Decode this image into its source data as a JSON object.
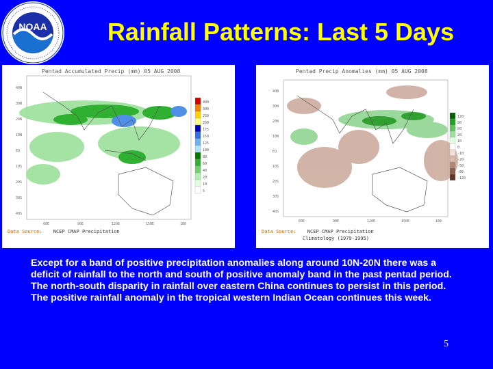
{
  "slide": {
    "title": "Rainfall Patterns: Last 5 Days",
    "body": "Except for a band of positive precipitation anomalies along around 10N-20N there was a deficit of rainfall to the north and south of positive anomaly band in the past pentad period. The north-south disparity in rainfall over eastern China continues to persist in this period.  The positive rainfall anomaly in the tropical western Indian Ocean continues this week.",
    "page_number": "5"
  },
  "logo": {
    "name": "noaa-logo",
    "text": "NOAA",
    "ring_text": "NATIONAL OCEANIC AND ATMOSPHERIC ADMINISTRATION · U.S. DEPARTMENT OF COMMERCE"
  },
  "maps": {
    "left": {
      "title": "Pentad Accumulated Precip (mm) 05 AUG 2008",
      "source_label": "Data Source:",
      "source_text": "NCEP CMAP Precipitation",
      "lat_labels": [
        "40N",
        "30N",
        "20N",
        "10N",
        "EQ",
        "10S",
        "20S",
        "30S",
        "40S"
      ],
      "lon_labels": [
        "60E",
        "90E",
        "120E",
        "150E",
        "180"
      ],
      "legend": [
        "400",
        "300",
        "250",
        "200",
        "175",
        "150",
        "125",
        "100",
        "80",
        "60",
        "40",
        "20",
        "10",
        "5"
      ],
      "legend_colors": [
        "#d40000",
        "#f08000",
        "#ffd000",
        "#ffff80",
        "#0000c8",
        "#3070e0",
        "#70b0f0",
        "#b0e0ff",
        "#007800",
        "#30b030",
        "#70d070",
        "#b0f0b0",
        "#e0ffe0",
        "#ffffff"
      ]
    },
    "right": {
      "title": "Pentad Precip Anomalies (mm) 05 AUG 2008",
      "source_label": "Data Source:",
      "source_text": "NCEP CMAP Precipitation",
      "source_text2": "Climatology (1979-1995)",
      "lat_labels": [
        "40N",
        "30N",
        "20N",
        "10N",
        "EQ",
        "10S",
        "20S",
        "30S",
        "40S"
      ],
      "lon_labels": [
        "60E",
        "90E",
        "120E",
        "150E",
        "180"
      ],
      "legend": [
        "120",
        "80",
        "50",
        "20",
        "10",
        "0",
        "-10",
        "-20",
        "-50",
        "-80",
        "-120"
      ],
      "legend_colors": [
        "#006000",
        "#20a020",
        "#60c060",
        "#a0e0a0",
        "#e0ffe0",
        "#ffffff",
        "#f0e0d8",
        "#d8b8a8",
        "#b08878",
        "#886050",
        "#603828"
      ]
    }
  }
}
